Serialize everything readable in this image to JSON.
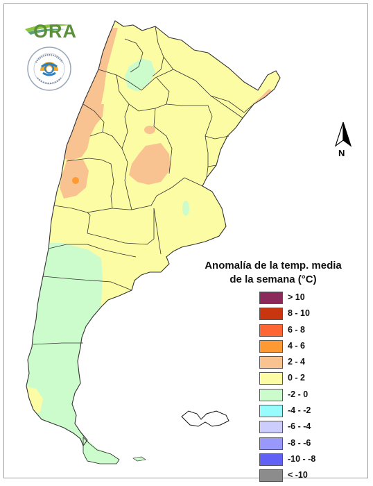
{
  "logo": {
    "text": "ORA",
    "seal_country": "ARGENTINA",
    "seal_ring": "SERVICIO METEOROLÓGICO NACIONAL"
  },
  "north": {
    "label": "N"
  },
  "legend": {
    "title_line1": "Anomalía de la temp. media",
    "title_line2": "de la semana (°C)",
    "items": [
      {
        "label": "> 10",
        "color": "#8b2a5a"
      },
      {
        "label": "8 - 10",
        "color": "#c8350f"
      },
      {
        "label": "6 - 8",
        "color": "#ff6633"
      },
      {
        "label": "4 - 6",
        "color": "#ff9933"
      },
      {
        "label": "2 - 4",
        "color": "#f8c391"
      },
      {
        "label": "0 - 2",
        "color": "#fcfca4"
      },
      {
        "label": "-2 - 0",
        "color": "#ccfccc"
      },
      {
        "label": "-4 - -2",
        "color": "#99fcfc"
      },
      {
        "label": "-6 - -4",
        "color": "#cccdfc"
      },
      {
        "label": "-8 - -6",
        "color": "#9999fc"
      },
      {
        "label": "-10 - -8",
        "color": "#6161f5"
      },
      {
        "label": "< -10",
        "color": "#8c8c8c"
      }
    ]
  }
}
